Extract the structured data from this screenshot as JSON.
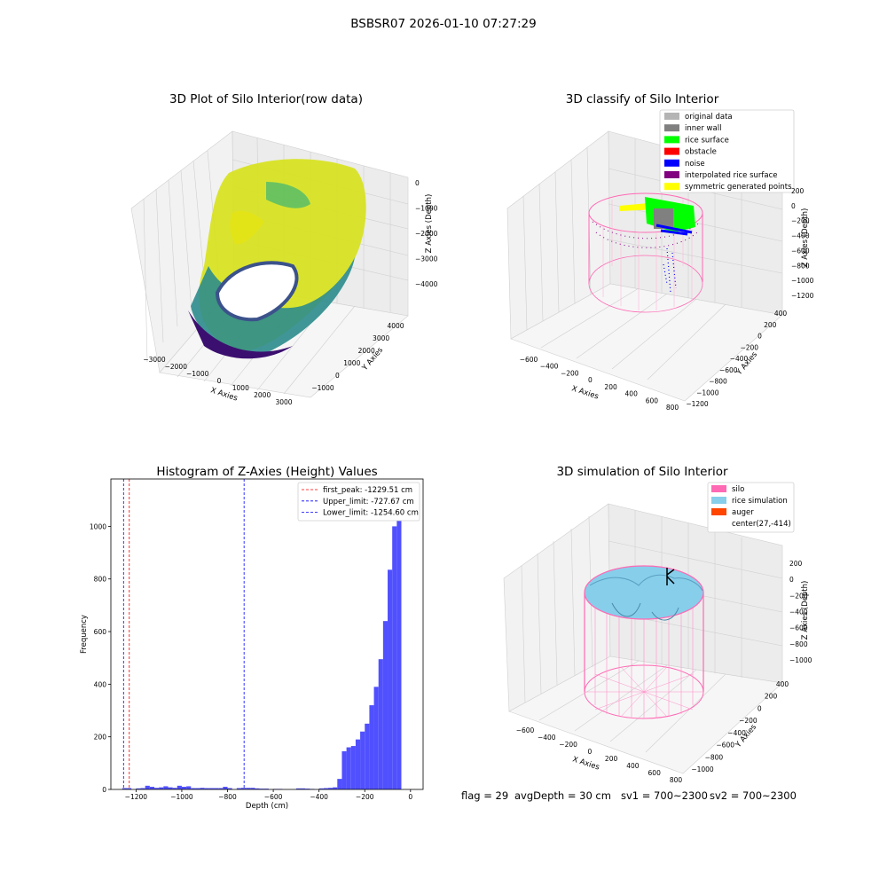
{
  "suptitle": "BSBSR07 2026-01-10 07:27:29",
  "colors": {
    "original": "#b4b4b4",
    "inner_wall": "#808080",
    "rice_surface": "#00ff00",
    "obstacle": "#ff0000",
    "noise": "#0000ff",
    "interpolated": "#800080",
    "symmetric": "#ffff00",
    "silo": "#ff69b4",
    "rice_sim": "#87ceeb",
    "auger": "#ff4500",
    "hist_bar": "#5050ff"
  },
  "chart_data": [
    {
      "type": "scatter3d",
      "title": "3D Plot of Silo Interior(row data)",
      "xlabel": "X Axies",
      "ylabel": "Y Axies",
      "zlabel": "Z Axies (Depth)",
      "x_ticks": [
        "−3000",
        "−2000",
        "−1000",
        "0",
        "1000",
        "2000",
        "3000"
      ],
      "y_ticks": [
        "−1000",
        "0",
        "1000",
        "2000",
        "3000",
        "4000"
      ],
      "z_ticks": [
        "0",
        "−1000",
        "−2000",
        "−3000",
        "−4000"
      ],
      "colormap": "viridis"
    },
    {
      "type": "scatter3d",
      "title": "3D classify of Silo Interior",
      "xlabel": "X Axies",
      "ylabel": "Y Axies",
      "zlabel": "Z Axies (Depth)",
      "x_ticks": [
        "−600",
        "−400",
        "−200",
        "0",
        "200",
        "400",
        "600",
        "800"
      ],
      "y_ticks": [
        "−1200",
        "−1000",
        "−800",
        "−600",
        "−400",
        "−200",
        "0",
        "200",
        "400"
      ],
      "z_ticks": [
        "200",
        "0",
        "−200",
        "−400",
        "−600",
        "−800",
        "−1000",
        "−1200"
      ],
      "legend": [
        "original data",
        "inner wall",
        "rice surface",
        "obstacle",
        "noise",
        "interpolated rice surface",
        "symmetric generated points"
      ],
      "legend_position": "top-right"
    },
    {
      "type": "histogram",
      "title": "Histogram of Z-Axies (Height) Values",
      "xlabel": "Depth (cm)",
      "ylabel": "Frequency",
      "xlim": [
        -1310,
        55
      ],
      "ylim": [
        0,
        1180
      ],
      "x_ticks": [
        -1200,
        -1000,
        -800,
        -600,
        -400,
        -200,
        0
      ],
      "x_tick_labels": [
        "−1200",
        "−1000",
        "−800",
        "−600",
        "−400",
        "−200",
        "0"
      ],
      "y_ticks": [
        0,
        200,
        400,
        600,
        800,
        1000
      ],
      "bin_width": 20,
      "bins": [
        [
          -1260,
          5
        ],
        [
          -1240,
          5
        ],
        [
          -1200,
          4
        ],
        [
          -1180,
          5
        ],
        [
          -1160,
          14
        ],
        [
          -1140,
          10
        ],
        [
          -1120,
          6
        ],
        [
          -1100,
          8
        ],
        [
          -1080,
          12
        ],
        [
          -1060,
          8
        ],
        [
          -1040,
          6
        ],
        [
          -1020,
          14
        ],
        [
          -1000,
          10
        ],
        [
          -980,
          12
        ],
        [
          -960,
          5
        ],
        [
          -940,
          5
        ],
        [
          -920,
          6
        ],
        [
          -900,
          5
        ],
        [
          -880,
          5
        ],
        [
          -860,
          5
        ],
        [
          -840,
          5
        ],
        [
          -820,
          10
        ],
        [
          -800,
          5
        ],
        [
          -760,
          5
        ],
        [
          -740,
          6
        ],
        [
          -720,
          6
        ],
        [
          -700,
          6
        ],
        [
          -680,
          4
        ],
        [
          -660,
          3
        ],
        [
          -640,
          3
        ],
        [
          -600,
          2
        ],
        [
          -580,
          2
        ],
        [
          -500,
          4
        ],
        [
          -480,
          4
        ],
        [
          -460,
          3
        ],
        [
          -440,
          2
        ],
        [
          -400,
          4
        ],
        [
          -380,
          5
        ],
        [
          -360,
          6
        ],
        [
          -340,
          8
        ],
        [
          -320,
          40
        ],
        [
          -300,
          145
        ],
        [
          -280,
          160
        ],
        [
          -260,
          165
        ],
        [
          -240,
          190
        ],
        [
          -220,
          220
        ],
        [
          -200,
          250
        ],
        [
          -180,
          320
        ],
        [
          -160,
          390
        ],
        [
          -140,
          495
        ],
        [
          -120,
          640
        ],
        [
          -100,
          835
        ],
        [
          -80,
          1000
        ],
        [
          -60,
          1120
        ]
      ],
      "lines": [
        {
          "label": "first_peak: -1229.51 cm",
          "value": -1229.51,
          "color": "#ff0000"
        },
        {
          "label": "Upper_limit: -727.67 cm",
          "value": -727.67,
          "color": "#0000ff"
        },
        {
          "label": "Lower_limit: -1254.60 cm",
          "value": -1254.6,
          "color": "#0000ff"
        }
      ],
      "legend_position": "top-right"
    },
    {
      "type": "surface3d",
      "title": "3D simulation of Silo Interior",
      "xlabel": "X Axies",
      "ylabel": "Y Axies",
      "zlabel": "Z Axies (Depth)",
      "x_ticks": [
        "−600",
        "−400",
        "−200",
        "0",
        "200",
        "400",
        "600",
        "800"
      ],
      "y_ticks": [
        "−1000",
        "−800",
        "−600",
        "−400",
        "−200",
        "0",
        "200",
        "400"
      ],
      "z_ticks": [
        "200",
        "0",
        "−200",
        "−400",
        "−600",
        "−800",
        "−1000"
      ],
      "legend": [
        "silo",
        "rice simulation",
        "auger",
        "center(27,-414)"
      ],
      "legend_position": "top-right"
    }
  ],
  "footer": {
    "flag": "flag = 29",
    "avg_depth": "avgDepth = 30 cm",
    "sv1": "sv1 = 700~2300",
    "sv2": "sv2 = 700~2300"
  }
}
